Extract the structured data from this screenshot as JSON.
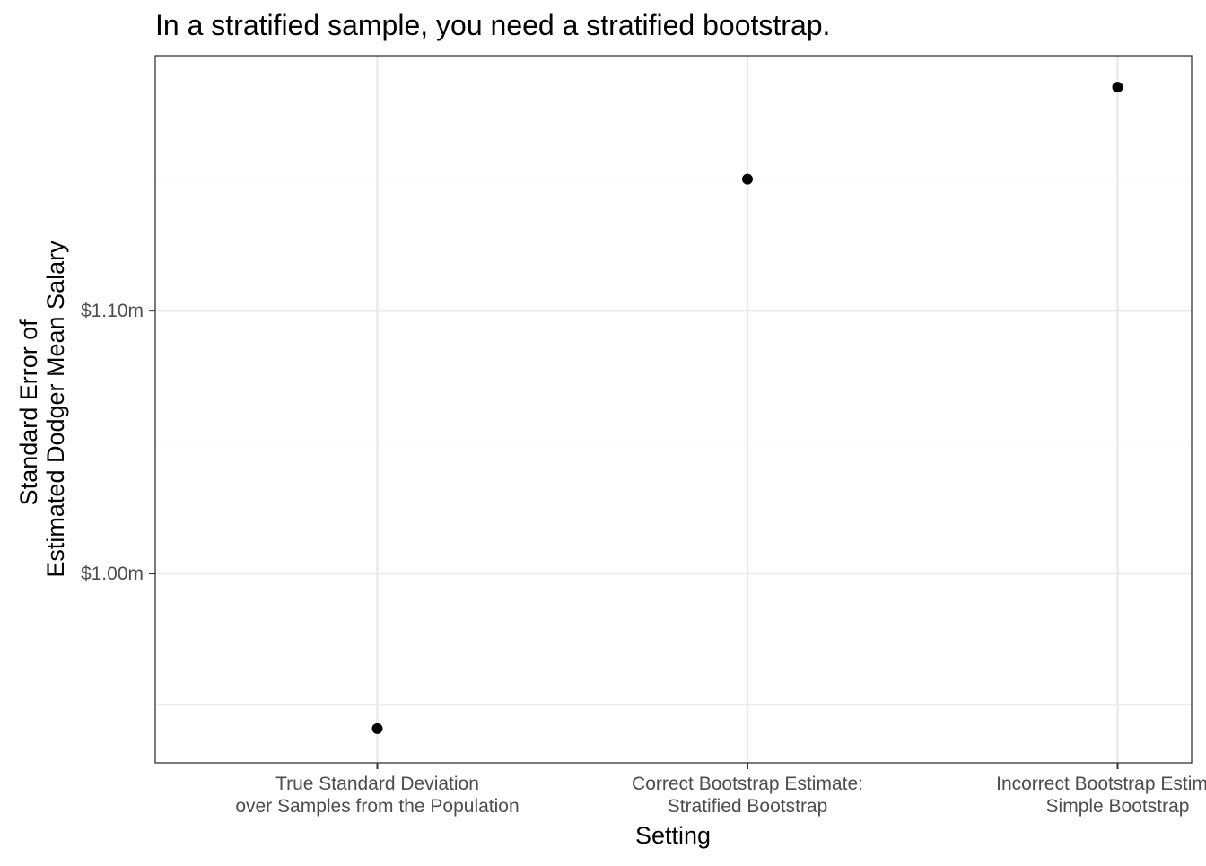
{
  "chart_data": {
    "type": "scatter",
    "title": "In a stratified sample, you need a stratified bootstrap.",
    "xlabel": "Setting",
    "ylabel_lines": [
      "Standard Error of",
      "Estimated Dodger Mean Salary"
    ],
    "categories": [
      {
        "lines": [
          "True Standard Deviation",
          "over Samples from the Population"
        ]
      },
      {
        "lines": [
          "Correct Bootstrap Estimate:",
          "Stratified Bootstrap"
        ]
      },
      {
        "lines": [
          "Incorrect Bootstrap Estimate:",
          "Simple Bootstrap"
        ]
      }
    ],
    "values": [
      0.941,
      1.15,
      1.185
    ],
    "value_unit": "millions of dollars",
    "ylim": [
      0.928,
      1.197
    ],
    "y_ticks": [
      {
        "value": 1.0,
        "label": "$1.00m"
      },
      {
        "value": 1.1,
        "label": "$1.10m"
      }
    ],
    "y_minor_gridlines": [
      0.95,
      1.05,
      1.15
    ],
    "grid": true,
    "point_color": "#000000",
    "grid_color": "#ebebeb",
    "panel_border_color": "#333333"
  }
}
